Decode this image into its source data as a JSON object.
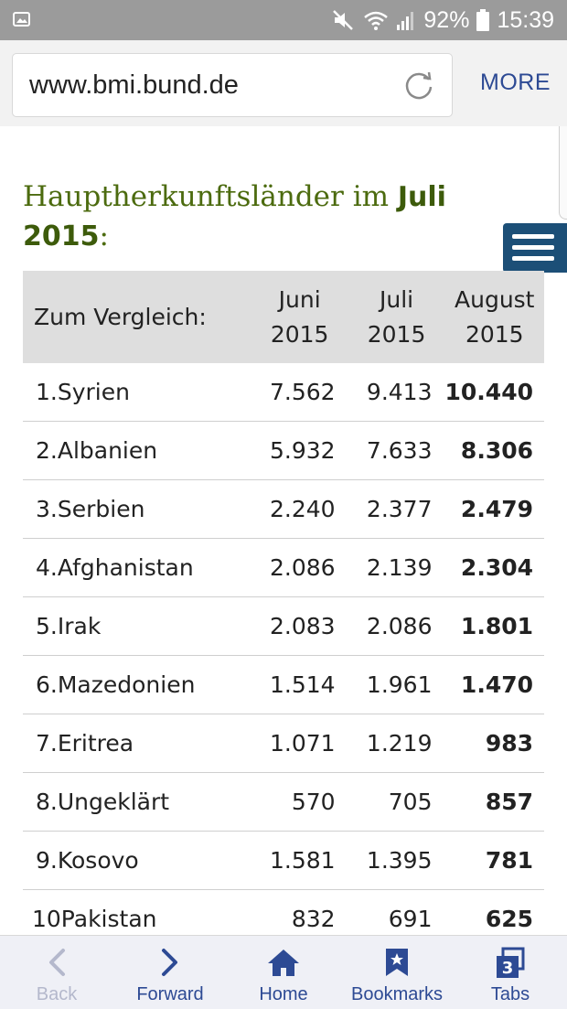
{
  "status_bar": {
    "battery": "92%",
    "time": "15:39"
  },
  "browser": {
    "url": "www.bmi.bund.de",
    "more_label": "MORE"
  },
  "page": {
    "heading_pre": "Hauptherkunftsländer im ",
    "heading_bold1": "Juli",
    "heading_bold2": "2015",
    "heading_post": ":"
  },
  "table": {
    "header": {
      "label": "Zum Vergleich:",
      "col1_line1": "Juni",
      "col1_line2": "2015",
      "col2_line1": "Juli",
      "col2_line2": "2015",
      "col3_line1": "August",
      "col3_line2": "2015"
    },
    "rows": [
      {
        "name": "1.Syrien",
        "juni": "7.562",
        "juli": "9.413",
        "august": "10.440"
      },
      {
        "name": "2.Albanien",
        "juni": "5.932",
        "juli": "7.633",
        "august": "8.306"
      },
      {
        "name": "3.Serbien",
        "juni": "2.240",
        "juli": "2.377",
        "august": "2.479"
      },
      {
        "name": "4.Afghanistan",
        "juni": "2.086",
        "juli": "2.139",
        "august": "2.304"
      },
      {
        "name": "5.Irak",
        "juni": "2.083",
        "juli": "2.086",
        "august": "1.801"
      },
      {
        "name": "6.Mazedonien",
        "juni": "1.514",
        "juli": "1.961",
        "august": "1.470"
      },
      {
        "name": "7.Eritrea",
        "juni": "1.071",
        "juli": "1.219",
        "august": "983"
      },
      {
        "name": "8.Ungeklärt",
        "juni": "570",
        "juli": "705",
        "august": "857"
      },
      {
        "name": "9.Kosovo",
        "juni": "1.581",
        "juli": "1.395",
        "august": "781"
      },
      {
        "name": "10Pakistan",
        "juni": "832",
        "juli": "691",
        "august": "625"
      }
    ]
  },
  "nav": {
    "back": "Back",
    "forward": "Forward",
    "home": "Home",
    "bookmarks": "Bookmarks",
    "tabs": "Tabs",
    "tabs_count": "3"
  },
  "colors": {
    "status_bar": "#9b9b9b",
    "heading_green": "#4c6b0f",
    "menu_blue": "#1c4f77",
    "nav_blue": "#2d4a94",
    "table_header": "#dedede"
  }
}
